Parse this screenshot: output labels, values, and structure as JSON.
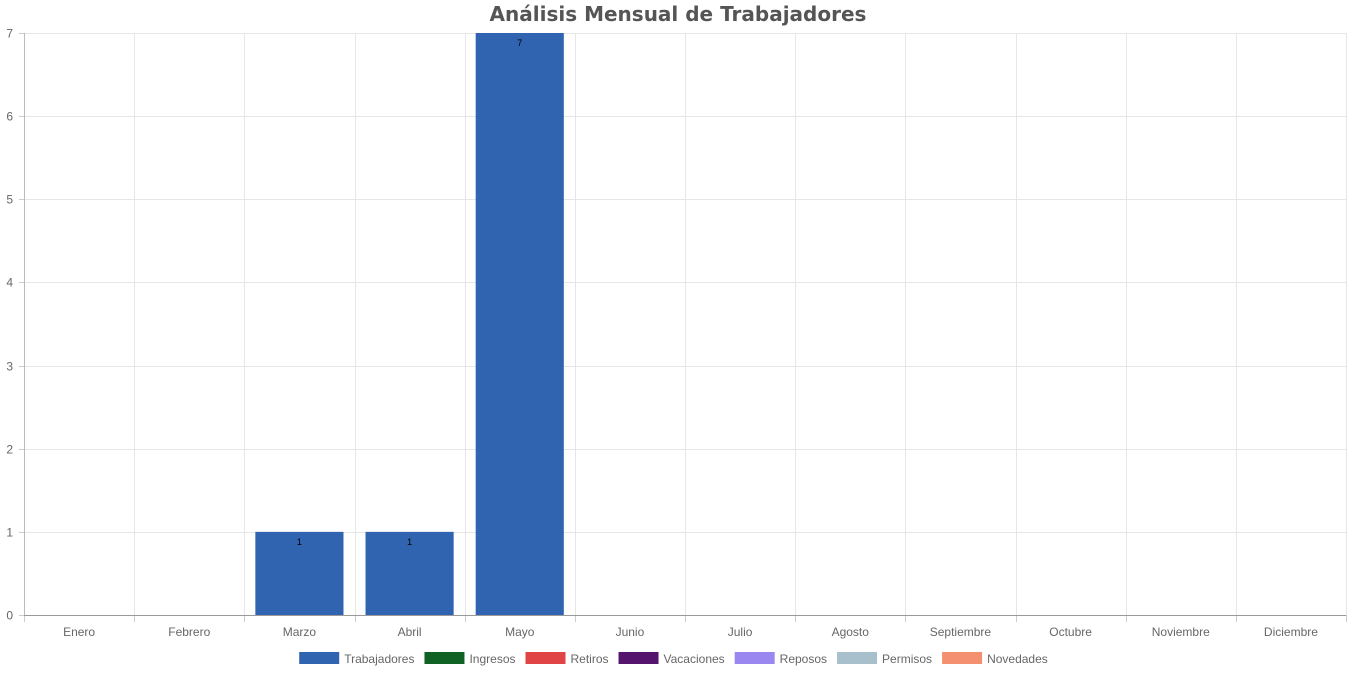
{
  "chart_data": {
    "type": "bar",
    "title": "Análisis Mensual de Trabajadores",
    "xlabel": "",
    "ylabel": "",
    "categories": [
      "Enero",
      "Febrero",
      "Marzo",
      "Abril",
      "Mayo",
      "Junio",
      "Julio",
      "Agosto",
      "Septiembre",
      "Octubre",
      "Noviembre",
      "Diciembre"
    ],
    "ylim": [
      0,
      7
    ],
    "yticks": [
      "0",
      "1",
      "2",
      "3",
      "4",
      "5",
      "6",
      "7"
    ],
    "grid": true,
    "legend_position": "bottom",
    "series": [
      {
        "name": "Trabajadores",
        "color": "#3063b0",
        "values": [
          0,
          0,
          1,
          1,
          7,
          0,
          0,
          0,
          0,
          0,
          0,
          0
        ]
      },
      {
        "name": "Ingresos",
        "color": "#0f6223",
        "values": [
          0,
          0,
          0,
          0,
          0,
          0,
          0,
          0,
          0,
          0,
          0,
          0
        ]
      },
      {
        "name": "Retiros",
        "color": "#e04444",
        "values": [
          0,
          0,
          0,
          0,
          0,
          0,
          0,
          0,
          0,
          0,
          0,
          0
        ]
      },
      {
        "name": "Vacaciones",
        "color": "#55146d",
        "values": [
          0,
          0,
          0,
          0,
          0,
          0,
          0,
          0,
          0,
          0,
          0,
          0
        ]
      },
      {
        "name": "Reposos",
        "color": "#9b87f0",
        "values": [
          0,
          0,
          0,
          0,
          0,
          0,
          0,
          0,
          0,
          0,
          0,
          0
        ]
      },
      {
        "name": "Permisos",
        "color": "#a8c0cb",
        "values": [
          0,
          0,
          0,
          0,
          0,
          0,
          0,
          0,
          0,
          0,
          0,
          0
        ]
      },
      {
        "name": "Novedades",
        "color": "#f4906f",
        "values": [
          0,
          0,
          0,
          0,
          0,
          0,
          0,
          0,
          0,
          0,
          0,
          0
        ]
      }
    ]
  }
}
